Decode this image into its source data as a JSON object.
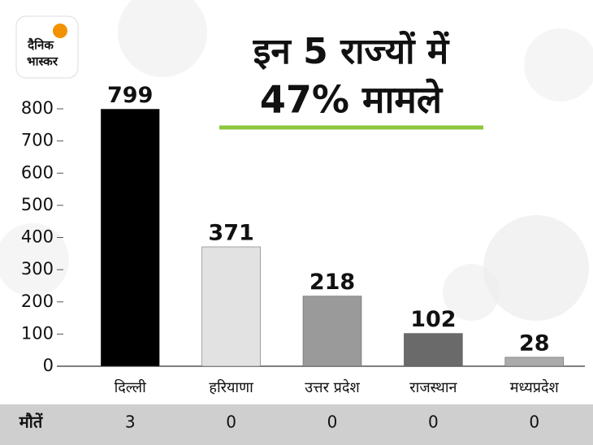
{
  "logo": {
    "line1": "दैनिक",
    "line2": "भास्कर"
  },
  "chart_data": {
    "type": "bar",
    "title": [
      "इन 5 राज्यों में",
      "47% मामले"
    ],
    "categories": [
      "दिल्ली",
      "हरियाणा",
      "उत्तर प्रदेश",
      "राजस्थान",
      "मध्यप्रदेश"
    ],
    "values": [
      799,
      371,
      218,
      102,
      28
    ],
    "colors": [
      "#000000",
      "#e2e2e2",
      "#9a9a9a",
      "#6a6a6a",
      "#ababab"
    ],
    "ylim": [
      0,
      800
    ],
    "yticks": [
      0,
      100,
      200,
      300,
      400,
      500,
      600,
      700,
      800
    ],
    "grid": false
  },
  "table": {
    "header": "मौतें",
    "values": [
      3,
      0,
      0,
      0,
      0
    ]
  }
}
